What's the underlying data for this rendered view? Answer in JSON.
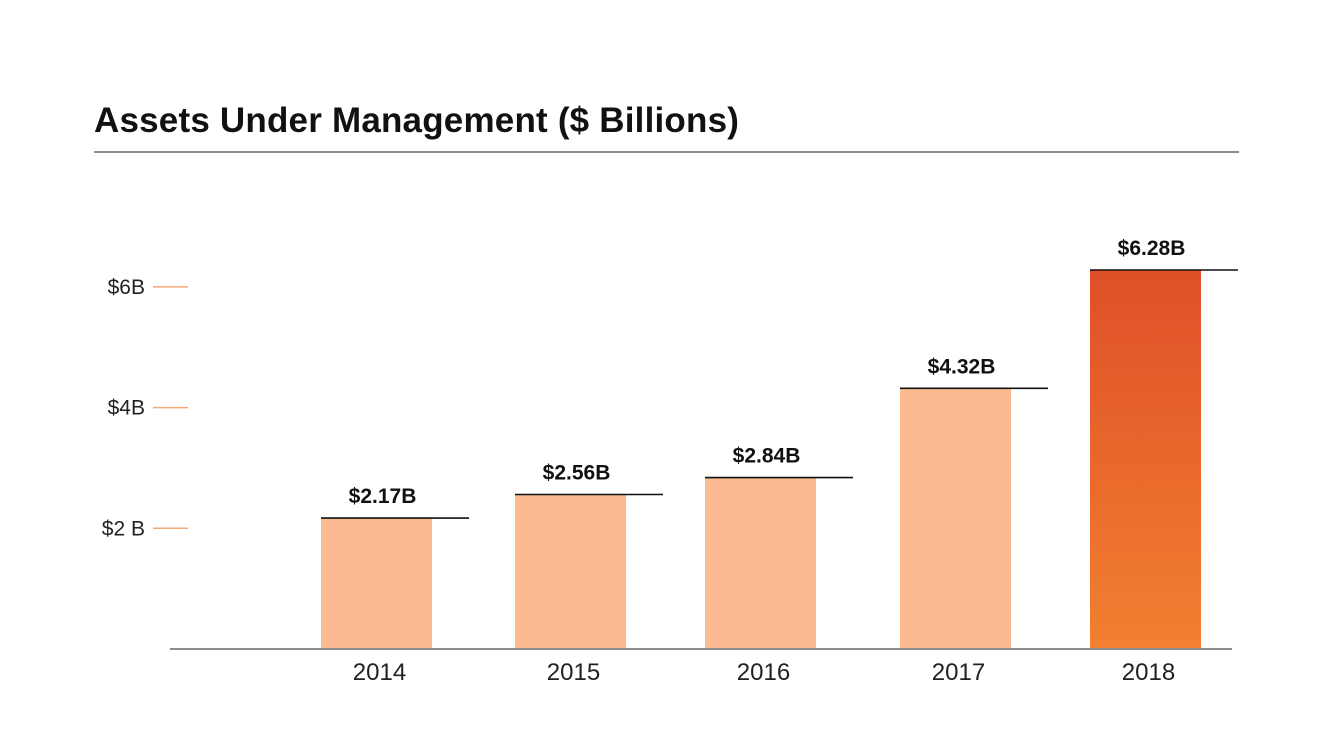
{
  "chart_data": {
    "type": "bar",
    "title": "Assets Under Management ($ Billions)",
    "xlabel": "",
    "ylabel": "",
    "categories": [
      "2014",
      "2015",
      "2016",
      "2017",
      "2018"
    ],
    "values": [
      2.17,
      2.56,
      2.84,
      4.32,
      6.28
    ],
    "value_labels": [
      "$2.17B",
      "$2.56B",
      "$2.84B",
      "$4.32B",
      "$6.28B"
    ],
    "yticks": [
      {
        "value": 2,
        "label": "$2 B"
      },
      {
        "value": 4,
        "label": "$4B"
      },
      {
        "value": 6,
        "label": "$6B"
      }
    ],
    "ylim": [
      0,
      6.28
    ],
    "grid": false,
    "legend": "none",
    "colors": {
      "bar": "#f9bb8f",
      "highlight_bar_top": "#df4f28",
      "highlight_bar_bottom": "#f28030",
      "tick_mark": "#f5a877",
      "baseline": "#8d8d8d",
      "label_line": "#111111"
    },
    "highlight_index": 4
  }
}
